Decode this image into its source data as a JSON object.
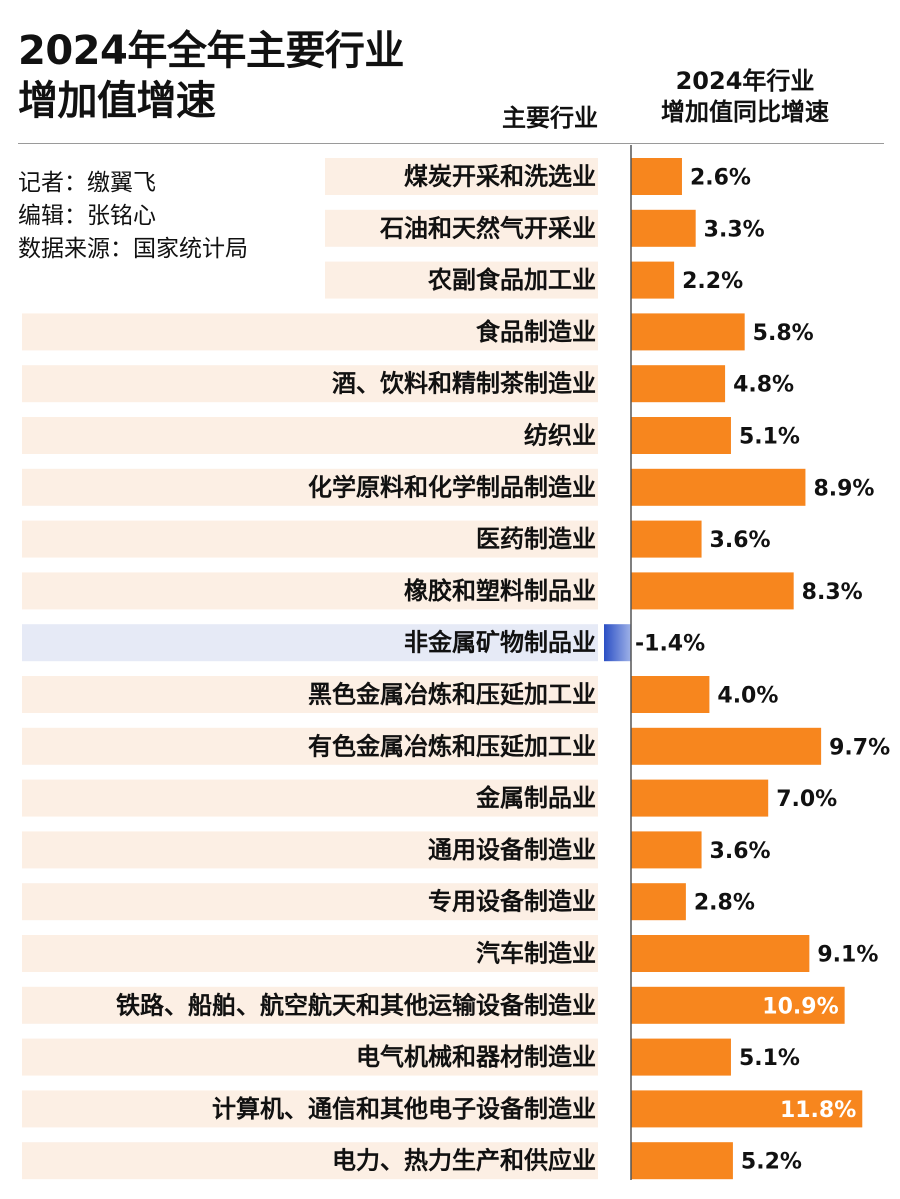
{
  "header": {
    "title_lines": [
      "2024年全年主要行业",
      "增加值增速"
    ],
    "industry_column": "主要行业",
    "growth_column_lines": [
      "2024年行业",
      "增加值同比增速"
    ]
  },
  "credits": {
    "reporter": "记者：缴翼飞",
    "editor": "编辑：张铭心",
    "source": "数据来源：国家统计局"
  },
  "colors": {
    "positive_bar": "#F7861E",
    "negative_bar": "#2B4FC4",
    "positive_row_bg": "#FCEFE4",
    "negative_row_bg": "#E6EAF6",
    "axis": "#555555"
  },
  "chart_data": {
    "type": "bar",
    "orientation": "horizontal",
    "unit": "%",
    "categories": [
      "煤炭开采和洗选业",
      "石油和天然气开采业",
      "农副食品加工业",
      "食品制造业",
      "酒、饮料和精制茶制造业",
      "纺织业",
      "化学原料和化学制品制造业",
      "医药制造业",
      "橡胶和塑料制品业",
      "非金属矿物制品业",
      "黑色金属冶炼和压延加工业",
      "有色金属冶炼和压延加工业",
      "金属制品业",
      "通用设备制造业",
      "专用设备制造业",
      "汽车制造业",
      "铁路、船舶、航空航天和其他运输设备制造业",
      "电气机械和器材制造业",
      "计算机、通信和其他电子设备制造业",
      "电力、热力生产和供应业"
    ],
    "values": [
      2.6,
      3.3,
      2.2,
      5.8,
      4.8,
      5.1,
      8.9,
      3.6,
      8.3,
      -1.4,
      4.0,
      9.7,
      7.0,
      3.6,
      2.8,
      9.1,
      10.9,
      5.1,
      11.8,
      5.2
    ],
    "value_labels": [
      "2.6%",
      "3.3%",
      "2.2%",
      "5.8%",
      "4.8%",
      "5.1%",
      "8.9%",
      "3.6%",
      "8.3%",
      "-1.4%",
      "4.0%",
      "9.7%",
      "7.0%",
      "3.6%",
      "2.8%",
      "9.1%",
      "10.9%",
      "5.1%",
      "11.8%",
      "5.2%"
    ],
    "xlim": [
      0,
      12
    ]
  }
}
